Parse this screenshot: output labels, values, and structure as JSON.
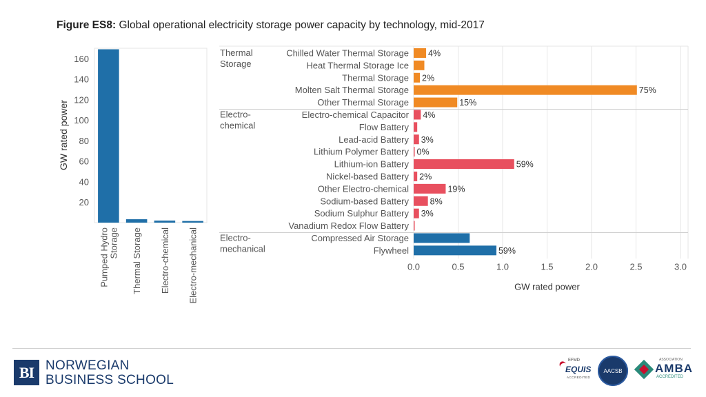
{
  "title": {
    "prefix": "Figure ES8:",
    "text": "Global operational electricity storage power capacity by technology, mid-2017"
  },
  "colors": {
    "thermal": "#f08a24",
    "electrochemical": "#e8505f",
    "electromechanical": "#1f6fa8",
    "pumped": "#1f6fa8",
    "grid": "#e6e6e6",
    "text": "#555555"
  },
  "chart_data": [
    {
      "type": "bar",
      "orientation": "vertical",
      "ylabel": "GW rated power",
      "ylim": [
        0,
        170
      ],
      "yticks": [
        20,
        40,
        60,
        80,
        100,
        120,
        140,
        160
      ],
      "categories": [
        "Pumped Hydro Storage",
        "Thermal Storage",
        "Electro-chemical",
        "Electro-mechanical"
      ],
      "values": [
        169,
        3.3,
        2.0,
        1.6
      ]
    },
    {
      "type": "bar",
      "orientation": "horizontal",
      "xlabel": "GW rated power",
      "xlim": [
        0,
        3.0
      ],
      "xticks": [
        "0.0",
        "0.5",
        "1.0",
        "1.5",
        "2.0",
        "2.5",
        "3.0"
      ],
      "groups": [
        {
          "name": "Thermal Storage",
          "color_key": "thermal",
          "items": [
            {
              "label": "Chilled Water Thermal Storage",
              "value": 0.14,
              "pct": "4%"
            },
            {
              "label": "Heat Thermal Storage Ice",
              "value": 0.12,
              "pct": ""
            },
            {
              "label": "Thermal Storage",
              "value": 0.07,
              "pct": "2%"
            },
            {
              "label": "Molten Salt Thermal Storage",
              "value": 2.51,
              "pct": "75%"
            },
            {
              "label": "Other Thermal Storage",
              "value": 0.49,
              "pct": "15%"
            }
          ]
        },
        {
          "name": "Electro-chemical",
          "color_key": "electrochemical",
          "items": [
            {
              "label": "Electro-chemical Capacitor",
              "value": 0.08,
              "pct": "4%"
            },
            {
              "label": "Flow Battery",
              "value": 0.04,
              "pct": ""
            },
            {
              "label": "Lead-acid Battery",
              "value": 0.06,
              "pct": "3%"
            },
            {
              "label": "Lithium Polymer Battery",
              "value": 0.01,
              "pct": "0%"
            },
            {
              "label": "Lithium-ion Battery",
              "value": 1.13,
              "pct": "59%"
            },
            {
              "label": "Nickel-based Battery",
              "value": 0.04,
              "pct": "2%"
            },
            {
              "label": "Other Electro-chemical",
              "value": 0.36,
              "pct": "19%"
            },
            {
              "label": "Sodium-based Battery",
              "value": 0.16,
              "pct": "8%"
            },
            {
              "label": "Sodium Sulphur Battery",
              "value": 0.06,
              "pct": "3%"
            },
            {
              "label": "Vanadium Redox Flow Battery",
              "value": 0.01,
              "pct": ""
            }
          ]
        },
        {
          "name": "Electro-mechanical",
          "color_key": "electromechanical",
          "items": [
            {
              "label": "Compressed Air Storage",
              "value": 0.63,
              "pct": ""
            },
            {
              "label": "Flywheel",
              "value": 0.93,
              "pct": "59%"
            }
          ]
        }
      ]
    }
  ],
  "footer": {
    "school_line1": "NORWEGIAN",
    "school_line2": "BUSINESS SCHOOL",
    "logo_text": "BI",
    "equis_top": "EFMD",
    "equis_main": "EQUIS",
    "equis_bottom": "ACCREDITED",
    "aacsb": "AACSB",
    "amba_top": "ASSOCIATION",
    "amba_main": "AMBA",
    "amba_bottom": "ACCREDITED"
  }
}
